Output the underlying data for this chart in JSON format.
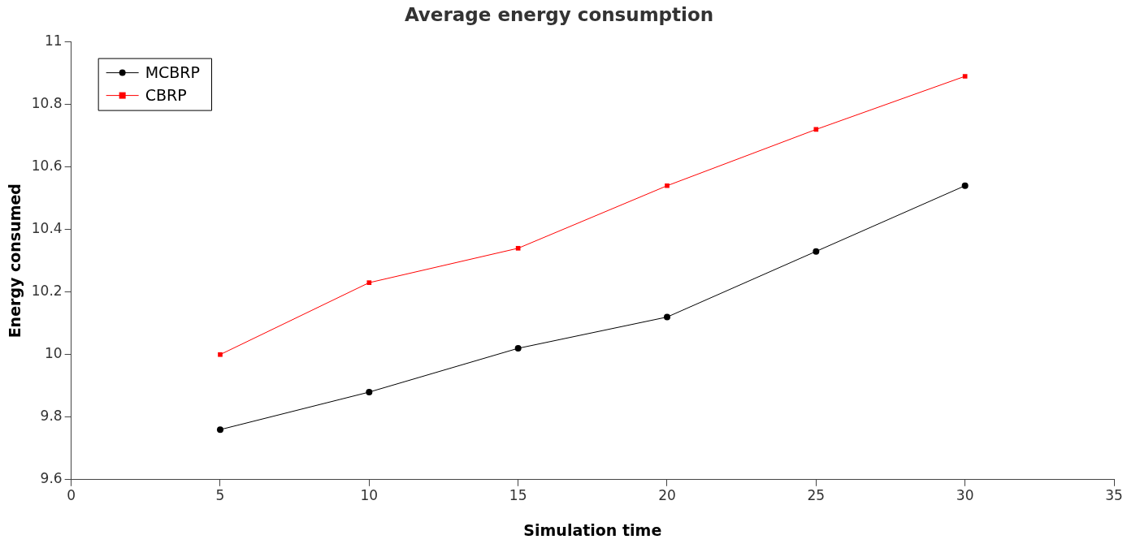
{
  "chart_data": {
    "type": "line",
    "title": "Average energy consumption",
    "xlabel": "Simulation time",
    "ylabel": "Energy consumed",
    "xlim": [
      0,
      35
    ],
    "xticks": [
      0,
      5,
      10,
      15,
      20,
      25,
      30,
      35
    ],
    "ylim": [
      9.6,
      11
    ],
    "yticks": [
      9.6,
      9.8,
      10,
      10.2,
      10.4,
      10.6,
      10.8,
      11
    ],
    "x": [
      5,
      10,
      15,
      20,
      25,
      30
    ],
    "series": [
      {
        "name": "MCBRP",
        "color": "#000000",
        "marker": "circle",
        "values": [
          9.76,
          9.88,
          10.02,
          10.12,
          10.33,
          10.54
        ]
      },
      {
        "name": "CBRP",
        "color": "#ff0000",
        "marker": "square",
        "values": [
          10.0,
          10.23,
          10.34,
          10.54,
          10.72,
          10.89
        ]
      }
    ],
    "grid": false,
    "legend": "top left",
    "line_style": "solid"
  }
}
